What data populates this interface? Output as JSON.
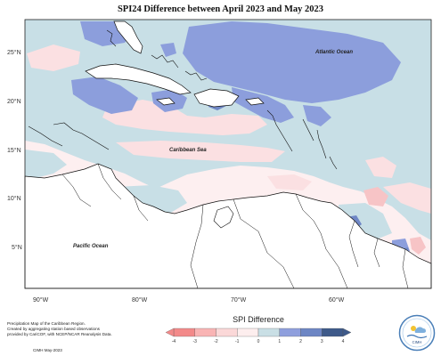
{
  "title": "SPI24 Difference between April 2023 and May 2023",
  "map": {
    "lat_labels": [
      "25°N",
      "20°N",
      "15°N",
      "10°N",
      "5°N"
    ],
    "lon_labels": [
      "90°W",
      "80°W",
      "70°W",
      "60°W"
    ],
    "sea_labels": {
      "atlantic": "Atlantic Ocean",
      "caribbean": "Caribbean Sea",
      "pacific": "Pacific Ocean"
    }
  },
  "legend": {
    "title": "SPI Difference",
    "ticks": [
      "-4",
      "-3",
      "-2",
      "-1",
      "0",
      "1",
      "2",
      "3",
      "4"
    ],
    "colors": [
      "#f38a8a",
      "#f9b4b4",
      "#fbd8d8",
      "#fdeeee",
      "#c9dfe5",
      "#8f9fdd",
      "#6d86c4",
      "#3e5a8a"
    ]
  },
  "credit": {
    "line1": "Precipitation Map of the Caribbean Region.",
    "line2": "Created by aggregating station based observations",
    "line3": "provided by CariCOF, with NCEP/NCAR Reanalysis Data.",
    "date": "CIMH May-2023"
  },
  "logo_text": "CIMH"
}
